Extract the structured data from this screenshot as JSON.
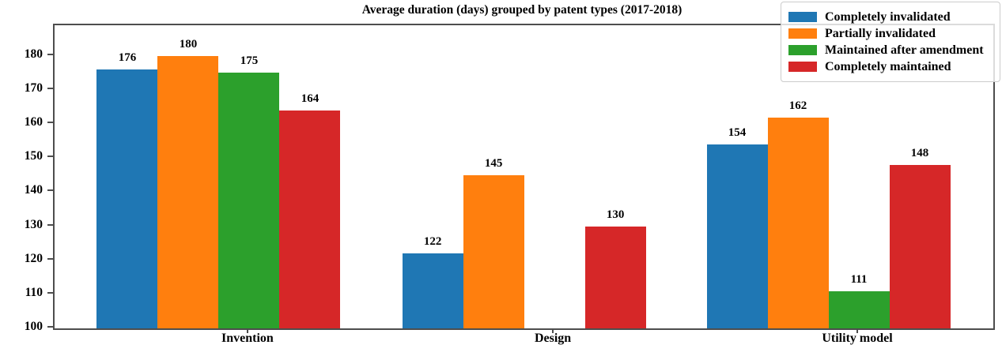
{
  "chart_data": {
    "type": "bar",
    "title": "Average duration (days) grouped by patent types (2017-2018)",
    "categories": [
      "Invention",
      "Design",
      "Utility model"
    ],
    "series": [
      {
        "name": "Completely invalidated",
        "color": "#1f77b4",
        "values": [
          176,
          122,
          154
        ]
      },
      {
        "name": "Partially invalidated",
        "color": "#ff7f0e",
        "values": [
          180,
          145,
          162
        ]
      },
      {
        "name": "Maintained after amendment",
        "color": "#2ca02c",
        "values": [
          175,
          null,
          111
        ]
      },
      {
        "name": "Completely maintained",
        "color": "#d62728",
        "values": [
          164,
          130,
          148
        ]
      }
    ],
    "xlabel": "",
    "ylabel": "",
    "ylim": [
      100,
      189
    ],
    "yticks": [
      100,
      110,
      120,
      130,
      140,
      150,
      160,
      170,
      180
    ],
    "grid": false,
    "bar_value_labels": true,
    "legend_position": "upper right",
    "note_occluded_label": "162"
  }
}
